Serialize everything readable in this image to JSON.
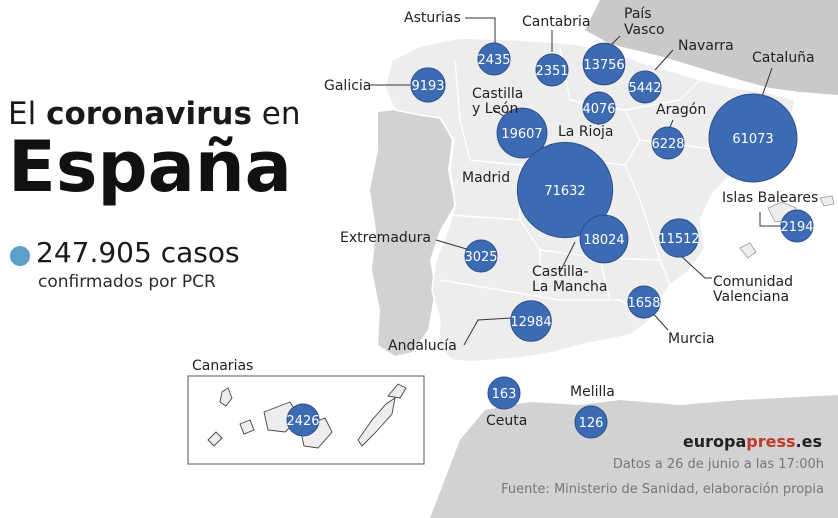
{
  "title": {
    "prefix": "El ",
    "highlight": "coronavirus",
    "suffix": " en",
    "country": "España"
  },
  "summary": {
    "cases": "247.905 casos",
    "subtitle": "confirmados por PCR"
  },
  "inset_label": "Canarias",
  "regions": [
    {
      "name": "Galicia",
      "value": "9193"
    },
    {
      "name": "Asturias",
      "value": "2435"
    },
    {
      "name": "Cantabria",
      "value": "2351"
    },
    {
      "name_lines": [
        "País",
        "Vasco"
      ],
      "value": "13756"
    },
    {
      "name": "Navarra",
      "value": "5442"
    },
    {
      "name": "Cataluña",
      "value": "61073"
    },
    {
      "name_lines": [
        "Castilla",
        "y León"
      ],
      "value": "19607"
    },
    {
      "name": "La Rioja",
      "value": "4076"
    },
    {
      "name": "Aragón",
      "value": "6228"
    },
    {
      "name": "Madrid",
      "value": "71632"
    },
    {
      "name_lines": [
        "Castilla-",
        "La Mancha"
      ],
      "value": "18024"
    },
    {
      "name": "Islas Baleares",
      "value": "2194"
    },
    {
      "name": "Extremadura",
      "value": "3025"
    },
    {
      "name_lines": [
        "Comunidad",
        "Valenciana"
      ],
      "value": "11512"
    },
    {
      "name": "Murcia",
      "value": "1658"
    },
    {
      "name": "Andalucía",
      "value": "12984"
    },
    {
      "name": "Ceuta",
      "value": "163"
    },
    {
      "name": "Melilla",
      "value": "126"
    },
    {
      "name": "Canarias",
      "value": "2426"
    }
  ],
  "footer": {
    "brand_a": "europa",
    "brand_b": "press",
    "brand_c": ".es",
    "date": "Datos a 26 de junio a las 17:00h",
    "source": "Fuente: Ministerio de Sanidad, elaboración propia"
  },
  "colors": {
    "bubble": "#3d6bb3",
    "bubble_stroke": "#2a4f8a",
    "region_fill": "#ededed",
    "sea": "#ffffff",
    "neighbor": "#c9c9c9",
    "accent_dot": "#5aa0c8"
  }
}
